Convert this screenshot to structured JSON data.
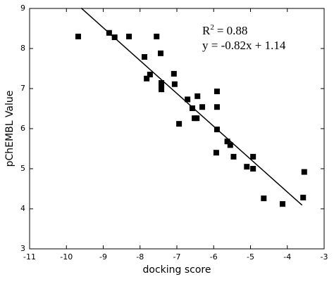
{
  "chart_data": {
    "type": "scatter",
    "x_label": "docking score",
    "y_label": "pChEMBL Value",
    "annotation": {
      "r2_base": "R",
      "r2_sup": "2",
      "r2_rest": "= 0.88",
      "equation": "y = -0.82x + 1.14"
    },
    "color": "#000000",
    "x": [
      -9.68,
      -8.84,
      -8.69,
      -8.3,
      -7.55,
      -7.88,
      -7.44,
      -7.73,
      -7.82,
      -7.42,
      -7.42,
      -7.42,
      -7.08,
      -7.06,
      -6.94,
      -6.71,
      -6.58,
      -6.44,
      -6.31,
      -6.52,
      -6.46,
      -5.91,
      -5.91,
      -5.91,
      -5.93,
      -5.63,
      -5.55,
      -5.46,
      -5.1,
      -4.93,
      -4.93,
      -4.64,
      -4.13,
      -3.54,
      -3.57
    ],
    "y": [
      8.3,
      8.39,
      8.28,
      8.3,
      8.3,
      7.79,
      7.88,
      7.35,
      7.25,
      7.14,
      7.07,
      6.98,
      7.37,
      7.11,
      6.12,
      6.73,
      6.51,
      6.81,
      6.54,
      6.26,
      6.26,
      6.93,
      6.54,
      5.98,
      5.4,
      5.68,
      5.59,
      5.3,
      5.05,
      5.3,
      5.0,
      4.26,
      4.12,
      4.92,
      4.28
    ],
    "fit": {
      "x": [
        -9.6,
        -3.6
      ],
      "y": [
        9.01,
        4.09
      ]
    },
    "xlim": [
      -11,
      -3
    ],
    "xticks": [
      -11,
      -10,
      -9,
      -8,
      -7,
      -6,
      -5,
      -4,
      -3
    ],
    "ylim": [
      3,
      9
    ],
    "yticks": [
      3,
      4,
      5,
      6,
      7,
      8,
      9
    ]
  }
}
